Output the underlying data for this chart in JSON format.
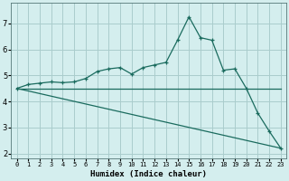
{
  "xlabel": "Humidex (Indice chaleur)",
  "background_color": "#d4eeee",
  "grid_color": "#aacccc",
  "line_color": "#1a6b5e",
  "xlim": [
    -0.5,
    23.5
  ],
  "ylim": [
    1.8,
    7.8
  ],
  "yticks": [
    2,
    3,
    4,
    5,
    6,
    7
  ],
  "xtick_labels": [
    "0",
    "1",
    "2",
    "3",
    "4",
    "5",
    "6",
    "7",
    "8",
    "9",
    "10",
    "11",
    "12",
    "13",
    "14",
    "15",
    "16",
    "17",
    "18",
    "19",
    "20",
    "21",
    "22",
    "23"
  ],
  "line1_x": [
    0,
    1,
    2,
    3,
    4,
    5,
    6,
    7,
    8,
    9,
    10,
    11,
    12,
    13,
    14,
    15,
    16,
    17,
    18,
    19,
    20,
    21,
    22,
    23
  ],
  "line1_y": [
    4.5,
    4.65,
    4.7,
    4.75,
    4.72,
    4.75,
    4.88,
    5.15,
    5.25,
    5.3,
    5.05,
    5.3,
    5.4,
    5.5,
    6.35,
    7.25,
    6.45,
    6.35,
    5.2,
    5.25,
    4.5,
    3.55,
    2.85,
    2.2
  ],
  "line2_x": [
    0,
    19,
    23
  ],
  "line2_y": [
    4.5,
    4.5,
    4.5
  ],
  "line3_x": [
    0,
    23
  ],
  "line3_y": [
    4.5,
    2.2
  ]
}
